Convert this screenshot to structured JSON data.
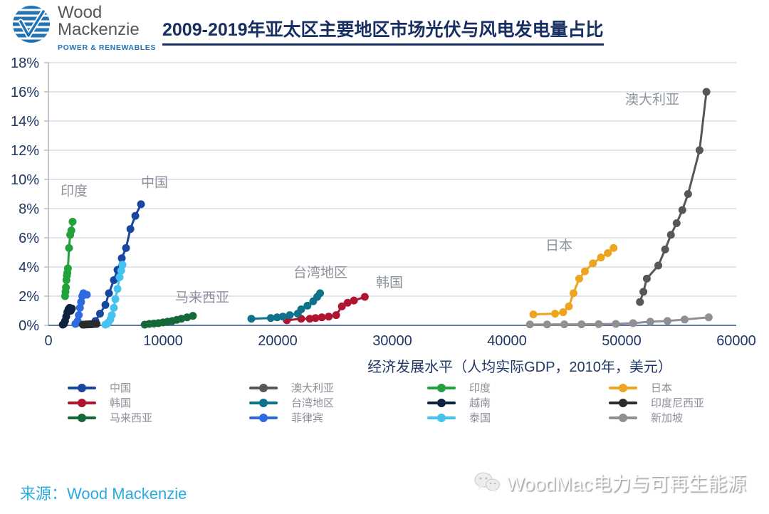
{
  "header": {
    "logo_line1": "Wood",
    "logo_line2": "Mackenzie",
    "logo_subtitle": "POWER & RENEWABLES",
    "title": "2009-2019年亚太区主要地区市场光伏与风电发电量占比"
  },
  "chart_data": {
    "type": "scatter",
    "title": "2009-2019年亚太区主要地区市场光伏与风电发电量占比",
    "xlabel": "经济发展水平（人均实际GDP，2010年，美元）",
    "ylabel": "",
    "xlim": [
      0,
      60000
    ],
    "ylim": [
      0,
      18
    ],
    "x_ticks": [
      0,
      10000,
      20000,
      30000,
      40000,
      50000,
      60000
    ],
    "y_ticks": [
      0,
      2,
      4,
      6,
      8,
      10,
      12,
      14,
      16,
      18
    ],
    "y_tick_suffix": "%",
    "grid": "horizontal",
    "legend_position": "bottom",
    "colors": {
      "tick_text": "#203864",
      "grid_line": "#d8dce9",
      "axis_line": "#a8adb8",
      "zero_line": "#2f4c8a",
      "annotation_text": "#8c929c"
    },
    "series": [
      {
        "name": "中国",
        "color": "#17479e",
        "points": [
          [
            4100,
            0.3
          ],
          [
            4500,
            0.8
          ],
          [
            4970,
            1.4
          ],
          [
            5280,
            2.2
          ],
          [
            5710,
            3.1
          ],
          [
            6025,
            3.8
          ],
          [
            6400,
            4.6
          ],
          [
            6770,
            5.3
          ],
          [
            7150,
            6.6
          ],
          [
            7580,
            7.5
          ],
          [
            8075,
            8.3
          ]
        ]
      },
      {
        "name": "韩国",
        "color": "#b01530",
        "points": [
          [
            20800,
            0.35
          ],
          [
            22050,
            0.45
          ],
          [
            22800,
            0.45
          ],
          [
            23300,
            0.5
          ],
          [
            23850,
            0.55
          ],
          [
            24450,
            0.6
          ],
          [
            25100,
            0.7
          ],
          [
            25600,
            1.3
          ],
          [
            26100,
            1.55
          ],
          [
            26650,
            1.7
          ],
          [
            27600,
            1.95
          ]
        ]
      },
      {
        "name": "马来西亚",
        "color": "#156936",
        "points": [
          [
            8400,
            0.05
          ],
          [
            8800,
            0.1
          ],
          [
            9200,
            0.12
          ],
          [
            9600,
            0.15
          ],
          [
            10000,
            0.2
          ],
          [
            10400,
            0.25
          ],
          [
            10800,
            0.3
          ],
          [
            11200,
            0.38
          ],
          [
            11600,
            0.45
          ],
          [
            12100,
            0.55
          ],
          [
            12600,
            0.65
          ]
        ]
      },
      {
        "name": "澳大利亚",
        "color": "#575757",
        "points": [
          [
            51600,
            1.6
          ],
          [
            51900,
            2.3
          ],
          [
            52200,
            3.2
          ],
          [
            53200,
            4.1
          ],
          [
            53800,
            5.2
          ],
          [
            54300,
            6.2
          ],
          [
            54800,
            7.0
          ],
          [
            55300,
            7.9
          ],
          [
            55800,
            9.0
          ],
          [
            56800,
            12.0
          ],
          [
            57400,
            16.0
          ]
        ]
      },
      {
        "name": "台湾地区",
        "color": "#10728a",
        "points": [
          [
            17700,
            0.45
          ],
          [
            19400,
            0.5
          ],
          [
            19950,
            0.55
          ],
          [
            20450,
            0.6
          ],
          [
            21050,
            0.7
          ],
          [
            21750,
            0.8
          ],
          [
            22050,
            1.1
          ],
          [
            22600,
            1.35
          ],
          [
            23100,
            1.65
          ],
          [
            23450,
            1.95
          ],
          [
            23700,
            2.2
          ]
        ]
      },
      {
        "name": "菲律宾",
        "color": "#2e6be0",
        "points": [
          [
            2350,
            0.1
          ],
          [
            2450,
            0.15
          ],
          [
            2550,
            0.3
          ],
          [
            2650,
            0.7
          ],
          [
            2750,
            1.2
          ],
          [
            2850,
            1.6
          ],
          [
            2950,
            2.0
          ],
          [
            3050,
            2.2
          ],
          [
            3350,
            2.1
          ]
        ]
      },
      {
        "name": "印度",
        "color": "#22a13c",
        "points": [
          [
            1450,
            2.0
          ],
          [
            1490,
            2.3
          ],
          [
            1530,
            2.6
          ],
          [
            1570,
            3.1
          ],
          [
            1610,
            3.4
          ],
          [
            1650,
            3.6
          ],
          [
            1700,
            3.9
          ],
          [
            1800,
            5.3
          ],
          [
            1900,
            6.2
          ],
          [
            2000,
            6.5
          ],
          [
            2110,
            7.1
          ]
        ]
      },
      {
        "name": "越南",
        "color": "#0e2240",
        "points": [
          [
            1250,
            0.05
          ],
          [
            1350,
            0.1
          ],
          [
            1450,
            0.3
          ],
          [
            1550,
            0.6
          ],
          [
            1650,
            0.9
          ],
          [
            1750,
            1.1
          ],
          [
            1850,
            1.2
          ],
          [
            1950,
            1.0
          ],
          [
            2050,
            1.15
          ]
        ]
      },
      {
        "name": "泰国",
        "color": "#45c2f0",
        "points": [
          [
            4970,
            0.05
          ],
          [
            5100,
            0.1
          ],
          [
            5220,
            0.2
          ],
          [
            5400,
            0.4
          ],
          [
            5530,
            0.7
          ],
          [
            5710,
            1.2
          ],
          [
            5840,
            1.8
          ],
          [
            6025,
            2.5
          ],
          [
            6210,
            3.3
          ],
          [
            6350,
            3.75
          ],
          [
            6460,
            4.15
          ]
        ]
      },
      {
        "name": "日本",
        "color": "#eda51f",
        "points": [
          [
            42300,
            0.75
          ],
          [
            44200,
            0.8
          ],
          [
            44900,
            0.9
          ],
          [
            45400,
            1.3
          ],
          [
            45800,
            2.2
          ],
          [
            46300,
            3.2
          ],
          [
            46800,
            3.7
          ],
          [
            47500,
            4.25
          ],
          [
            48200,
            4.65
          ],
          [
            48800,
            4.95
          ],
          [
            49300,
            5.3
          ]
        ]
      },
      {
        "name": "印度尼西亚",
        "color": "#2b2b2b",
        "points": [
          [
            3000,
            0.05
          ],
          [
            3120,
            0.05
          ],
          [
            3240,
            0.06
          ],
          [
            3360,
            0.06
          ],
          [
            3480,
            0.07
          ],
          [
            3600,
            0.07
          ],
          [
            3720,
            0.08
          ],
          [
            3840,
            0.08
          ],
          [
            3960,
            0.09
          ],
          [
            4080,
            0.1
          ],
          [
            4200,
            0.1
          ]
        ]
      },
      {
        "name": "新加坡",
        "color": "#909090",
        "points": [
          [
            42000,
            0.06
          ],
          [
            43500,
            0.06
          ],
          [
            45000,
            0.07
          ],
          [
            46500,
            0.07
          ],
          [
            48000,
            0.08
          ],
          [
            49500,
            0.1
          ],
          [
            51000,
            0.15
          ],
          [
            52500,
            0.25
          ],
          [
            54000,
            0.3
          ],
          [
            55500,
            0.4
          ],
          [
            57600,
            0.55
          ]
        ]
      }
    ],
    "annotations": [
      {
        "text": "印度",
        "x": 1056,
        "y": 8.9
      },
      {
        "text": "中国",
        "x": 8075,
        "y": 9.5
      },
      {
        "text": "马来西亚",
        "x": 11055,
        "y": 1.6
      },
      {
        "text": "台湾地区",
        "x": 21366,
        "y": 3.32
      },
      {
        "text": "韩国",
        "x": 28571,
        "y": 2.63
      },
      {
        "text": "日本",
        "x": 43354,
        "y": 5.17
      },
      {
        "text": "澳大利亚",
        "x": 50310,
        "y": 15.17
      }
    ]
  },
  "legend_columns": [
    [
      {
        "label": "中国",
        "color": "#17479e"
      },
      {
        "label": "韩国",
        "color": "#b01530"
      },
      {
        "label": "马来西亚",
        "color": "#156936"
      }
    ],
    [
      {
        "label": "澳大利亚",
        "color": "#575757"
      },
      {
        "label": "台湾地区",
        "color": "#10728a"
      },
      {
        "label": "菲律宾",
        "color": "#2e6be0"
      }
    ],
    [
      {
        "label": "印度",
        "color": "#22a13c"
      },
      {
        "label": "越南",
        "color": "#0e2240"
      },
      {
        "label": "泰国",
        "color": "#45c2f0"
      }
    ],
    [
      {
        "label": "日本",
        "color": "#eda51f"
      },
      {
        "label": "印度尼西亚",
        "color": "#2b2b2b"
      },
      {
        "label": "新加坡",
        "color": "#909090"
      }
    ]
  ],
  "footer": {
    "source_label": "来源：",
    "source_value": "Wood Mackenzie",
    "watermark_text": "WoodMac电力与可再生能源"
  }
}
